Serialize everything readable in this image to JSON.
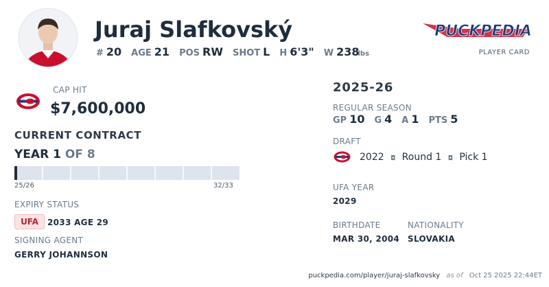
{
  "header": {
    "name": "Juraj Slafkovský",
    "stats": [
      {
        "label": "#",
        "value": "20"
      },
      {
        "label": "AGE",
        "value": "21"
      },
      {
        "label": "POS",
        "value": "RW"
      },
      {
        "label": "SHOT",
        "value": "L"
      },
      {
        "label": "H",
        "value": "6'3\""
      },
      {
        "label": "W",
        "value": "238",
        "unit": "lbs"
      }
    ],
    "logo": "PUCKPEDIA",
    "logo_caption": "PLAYER CARD"
  },
  "cap": {
    "label": "CAP HIT",
    "value": "$7,600,000"
  },
  "contract": {
    "title": "CURRENT CONTRACT",
    "year_word": "YEAR",
    "year": 1,
    "of_word": "OF",
    "years": 8,
    "start": "25/26",
    "end": "32/33"
  },
  "expiry": {
    "label": "EXPIRY STATUS",
    "status": "UFA",
    "detail": "2033 AGE 29"
  },
  "agent": {
    "label": "SIGNING AGENT",
    "name": "GERRY JOHANNSON"
  },
  "season": {
    "title": "2025-26",
    "label": "REGULAR SEASON",
    "stats": [
      {
        "label": "GP",
        "value": "10"
      },
      {
        "label": "G",
        "value": "4"
      },
      {
        "label": "A",
        "value": "1"
      },
      {
        "label": "PTS",
        "value": "5"
      }
    ]
  },
  "draft": {
    "label": "DRAFT",
    "year": "2022",
    "round": "Round 1",
    "pick": "Pick 1"
  },
  "ufa": {
    "label": "UFA YEAR",
    "value": "2029"
  },
  "birth": {
    "label": "BIRTHDATE",
    "value": "MAR 30, 2004"
  },
  "nation": {
    "label": "NATIONALITY",
    "value": "SLOVAKIA"
  },
  "footer": {
    "url": "puckpedia.com/player/juraj-slafkovsky",
    "as_of": "as of",
    "date": "Oct 25 2025 22:44ET"
  }
}
